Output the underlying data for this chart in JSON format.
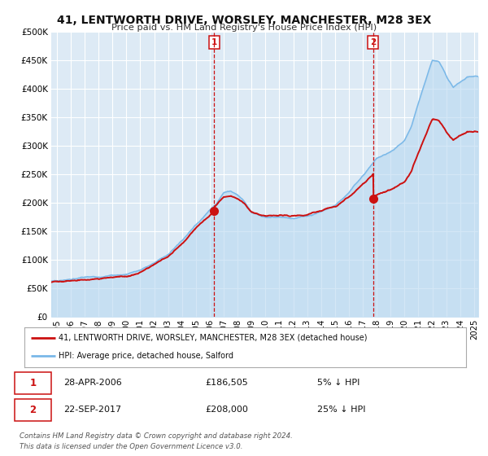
{
  "title": "41, LENTWORTH DRIVE, WORSLEY, MANCHESTER, M28 3EX",
  "subtitle": "Price paid vs. HM Land Registry's House Price Index (HPI)",
  "background_color": "#ffffff",
  "plot_bg_color": "#ddeaf5",
  "grid_color": "#ffffff",
  "hpi_color": "#7ab8e8",
  "hpi_fill_color": "#b8d8f0",
  "price_color": "#cc1111",
  "marker1_date": 2006.32,
  "marker1_value": 186505,
  "marker1_text": "28-APR-2006",
  "marker1_price": "£186,505",
  "marker1_hpi": "5% ↓ HPI",
  "marker2_date": 2017.73,
  "marker2_value": 208000,
  "marker2_text": "22-SEP-2017",
  "marker2_price": "£208,000",
  "marker2_hpi": "25% ↓ HPI",
  "legend_label1": "41, LENTWORTH DRIVE, WORSLEY, MANCHESTER, M28 3EX (detached house)",
  "legend_label2": "HPI: Average price, detached house, Salford",
  "footer1": "Contains HM Land Registry data © Crown copyright and database right 2024.",
  "footer2": "This data is licensed under the Open Government Licence v3.0.",
  "ylim": [
    0,
    500000
  ],
  "xlim_start": 1994.6,
  "xlim_end": 2025.3,
  "key_years": [
    1994.6,
    1995.0,
    1996.0,
    1997.0,
    1998.0,
    1999.0,
    2000.0,
    2001.0,
    2002.0,
    2003.0,
    2004.0,
    2005.0,
    2006.0,
    2006.5,
    2007.0,
    2007.5,
    2008.0,
    2008.5,
    2009.0,
    2009.5,
    2010.0,
    2011.0,
    2012.0,
    2013.0,
    2014.0,
    2015.0,
    2016.0,
    2017.0,
    2018.0,
    2019.0,
    2019.5,
    2020.0,
    2020.5,
    2021.0,
    2021.5,
    2022.0,
    2022.5,
    2023.0,
    2023.5,
    2024.0,
    2024.5,
    2025.3
  ],
  "key_vals": [
    63000,
    64000,
    66000,
    69000,
    71000,
    73000,
    75000,
    82000,
    95000,
    110000,
    135000,
    162000,
    188000,
    200000,
    218000,
    222000,
    215000,
    203000,
    183000,
    177000,
    174000,
    175000,
    174000,
    177000,
    185000,
    196000,
    218000,
    248000,
    278000,
    288000,
    298000,
    308000,
    335000,
    375000,
    415000,
    452000,
    448000,
    422000,
    402000,
    412000,
    422000,
    422000
  ]
}
